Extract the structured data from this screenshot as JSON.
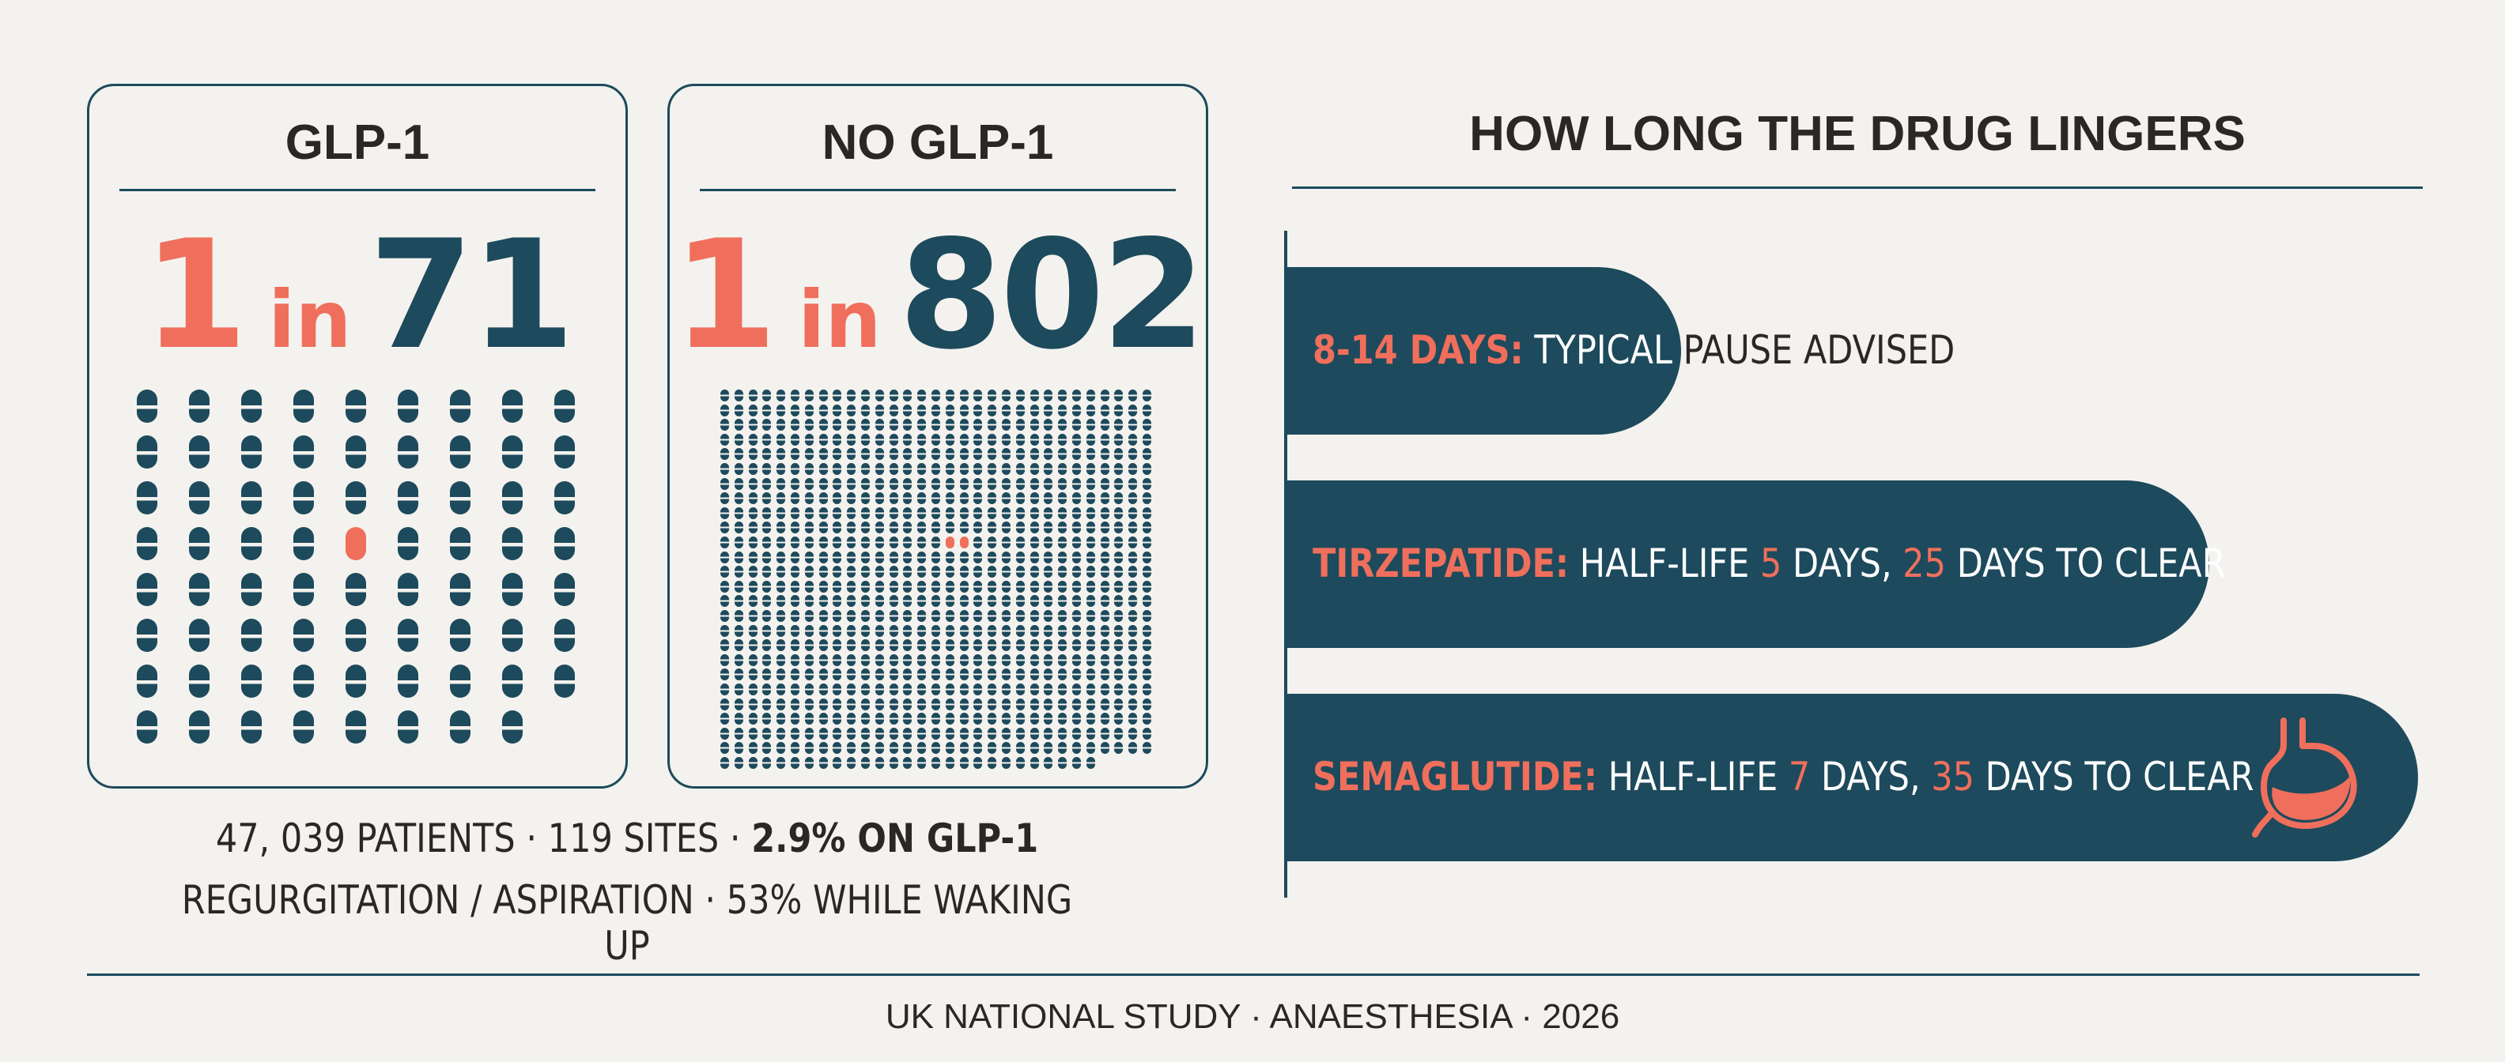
{
  "cards": [
    {
      "title": "GLP-1",
      "one": "1",
      "in": "in",
      "number": "71",
      "total": 71,
      "affected": 1
    },
    {
      "title": "NO GLP-1",
      "one": "1",
      "in": "in",
      "number": "802",
      "total": 802,
      "affected": 1
    }
  ],
  "stats": {
    "line1_plain": "47, 039 PATIENTS · 119 SITES · ",
    "line1_bold": "2.9% ON GLP-1",
    "line2": "REGURGITATION / ASPIRATION · 53% WHILE WAKING UP"
  },
  "lingers": {
    "title": "HOW LONG THE DRUG LINGERS",
    "rows": [
      {
        "key": "8-14 DAYS:",
        "text1": "TYPICAL",
        "text2": " PAUSE ADVISED"
      },
      {
        "key": "TIRZEPATIDE:",
        "text1": "HALF-LIFE ",
        "half_life": "5",
        "text2": " DAYS, ",
        "clear": "25",
        "text3": " DAYS TO CLEAR"
      },
      {
        "key": "SEMAGLUTIDE:",
        "text1": "HALF-LIFE ",
        "half_life": "7",
        "text2": " DAYS, ",
        "clear": "35",
        "text3": " DAYS TO CLEAR"
      }
    ]
  },
  "icons": {
    "stomach": "stomach-icon"
  },
  "colors": {
    "navy": "#1d4a5c",
    "coral": "#ef6f5c",
    "background": "#f4f2ee",
    "text": "#2b2726"
  },
  "footer": "UK NATIONAL STUDY · ANAESTHESIA · 2026"
}
